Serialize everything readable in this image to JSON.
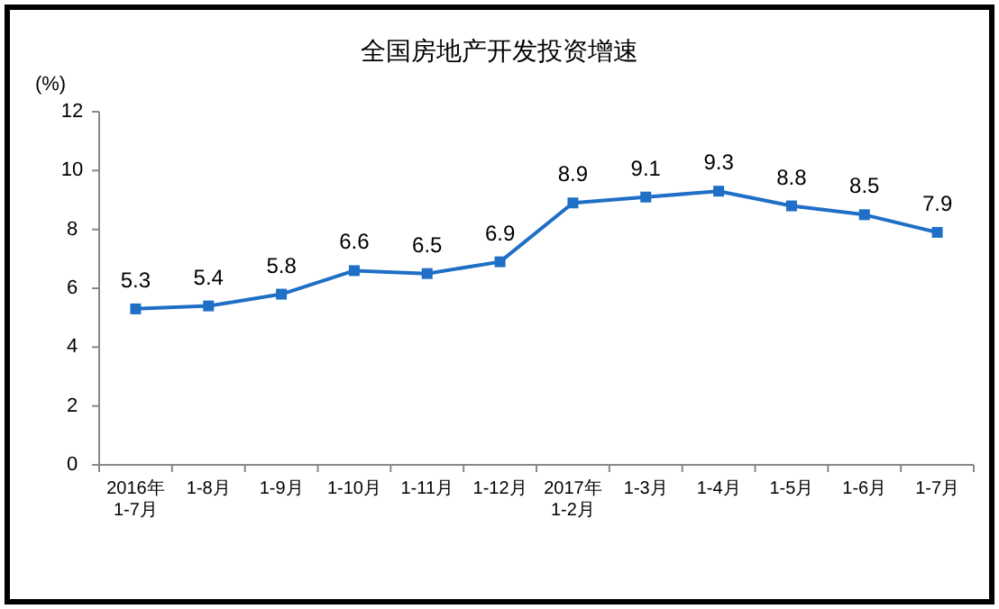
{
  "chart_data": {
    "type": "line",
    "title": "全国房地产开发投资增速",
    "ylabel": "(%)",
    "categories": [
      "2016年\n1-7月",
      "1-8月",
      "1-9月",
      "1-10月",
      "1-11月",
      "1-12月",
      "2017年\n1-2月",
      "1-3月",
      "1-4月",
      "1-5月",
      "1-6月",
      "1-7月"
    ],
    "series": [
      {
        "color": "#1f6fc6",
        "values": [
          5.3,
          5.4,
          5.8,
          6.6,
          6.5,
          6.9,
          8.9,
          9.1,
          9.3,
          8.8,
          8.5,
          7.9
        ]
      }
    ],
    "ylim": [
      0,
      12
    ],
    "yticks": [
      0,
      2,
      4,
      6,
      8,
      10,
      12
    ],
    "data_labels": true,
    "marker": "square",
    "line_style": "solid",
    "grid": false,
    "legend": false
  }
}
